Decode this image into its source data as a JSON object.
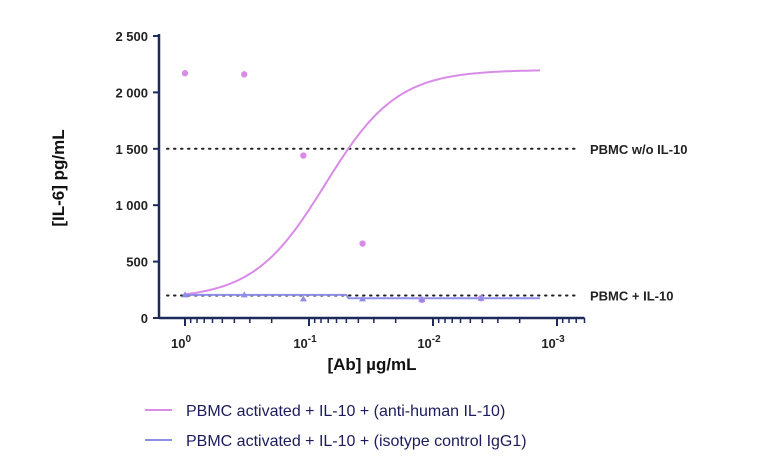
{
  "chart_data": {
    "type": "scatter",
    "xlabel": "[Ab] µg/mL",
    "ylabel": "[IL-6] pg/mL",
    "x_scale": "log-reversed",
    "xlim": [
      1.4,
      0.0006
    ],
    "ylim": [
      0,
      2500
    ],
    "xticks": [
      {
        "v": 1,
        "base": "10",
        "exp": "0"
      },
      {
        "v": 0.1,
        "base": "10",
        "exp": "-1"
      },
      {
        "v": 0.01,
        "base": "10",
        "exp": "-2"
      },
      {
        "v": 0.001,
        "base": "10",
        "exp": "-3"
      }
    ],
    "yticks": [
      {
        "v": 0,
        "label": "0"
      },
      {
        "v": 500,
        "label": "500"
      },
      {
        "v": 1000,
        "label": "1 000"
      },
      {
        "v": 1500,
        "label": "1 500"
      },
      {
        "v": 2000,
        "label": "2 000"
      },
      {
        "v": 2500,
        "label": "2 500"
      }
    ],
    "reference_lines": [
      {
        "y": 1500,
        "label": "PBMC w/o IL-10"
      },
      {
        "y": 200,
        "label": "PBMC + IL-10"
      }
    ],
    "series": [
      {
        "name": "PBMC activated + IL-10 + (anti-human  IL-10)",
        "color": "#d98be8",
        "marker": "circle",
        "x": [
          1,
          0.333,
          0.111,
          0.037,
          0.0123,
          0.0041
        ],
        "y": [
          2170,
          2160,
          1440,
          660,
          160,
          175
        ],
        "fit": {
          "type": "4PL",
          "top": 2200,
          "bottom": 170,
          "ic50": 0.074,
          "hill": 1.5,
          "xrange": [
            1,
            0.00137
          ]
        }
      },
      {
        "name": "PBMC activated + IL-10 + (isotype control IgG1)",
        "color": "#8e8ee6",
        "marker": "triangle",
        "x": [
          1,
          0.333,
          0.111,
          0.037,
          0.0123,
          0.0041
        ],
        "y": [
          205,
          205,
          170,
          170,
          165,
          175
        ],
        "line": {
          "x": [
            1,
            0.05,
            0.048,
            0.00137
          ],
          "y": [
            205,
            205,
            175,
            175
          ]
        }
      }
    ],
    "legend_position": "bottom",
    "axis_color": "#1f2a5c"
  }
}
